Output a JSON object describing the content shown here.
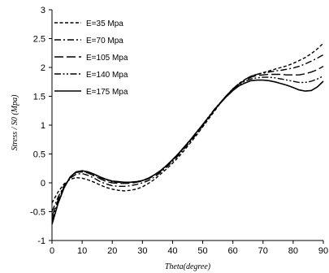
{
  "chart_data": {
    "type": "line",
    "xlabel": "Theta(degree)",
    "ylabel": "Stress / S0 (Mpa)",
    "xlim": [
      0,
      90
    ],
    "ylim": [
      -1,
      3
    ],
    "xticks": [
      0,
      10,
      20,
      30,
      40,
      50,
      60,
      70,
      80,
      90
    ],
    "yticks": [
      -1,
      -0.5,
      0,
      0.5,
      1,
      1.5,
      2,
      2.5,
      3
    ],
    "grid": false,
    "legend_position": "top-left",
    "x": [
      0,
      2,
      4,
      6,
      8,
      10,
      12,
      14,
      16,
      18,
      20,
      22,
      24,
      26,
      28,
      30,
      32,
      34,
      36,
      38,
      40,
      42,
      44,
      46,
      48,
      50,
      52,
      54,
      56,
      58,
      60,
      62,
      64,
      66,
      68,
      70,
      72,
      74,
      76,
      78,
      80,
      82,
      84,
      86,
      88,
      90
    ],
    "series": [
      {
        "name": "E=35 Mpa",
        "dash": "dash",
        "values": [
          -0.35,
          -0.16,
          -0.02,
          0.06,
          0.09,
          0.08,
          0.05,
          0.01,
          -0.04,
          -0.08,
          -0.11,
          -0.13,
          -0.14,
          -0.13,
          -0.11,
          -0.07,
          -0.01,
          0.06,
          0.15,
          0.24,
          0.34,
          0.45,
          0.57,
          0.7,
          0.83,
          0.97,
          1.11,
          1.25,
          1.39,
          1.51,
          1.63,
          1.72,
          1.79,
          1.85,
          1.88,
          1.91,
          1.94,
          1.97,
          2.0,
          2.03,
          2.07,
          2.12,
          2.17,
          2.24,
          2.32,
          2.42
        ]
      },
      {
        "name": "E=70 Mpa",
        "dash": "dashdot",
        "values": [
          -0.5,
          -0.25,
          -0.05,
          0.08,
          0.15,
          0.16,
          0.13,
          0.08,
          0.02,
          -0.02,
          -0.05,
          -0.06,
          -0.06,
          -0.05,
          -0.03,
          0.0,
          0.04,
          0.1,
          0.18,
          0.27,
          0.37,
          0.48,
          0.6,
          0.72,
          0.85,
          0.99,
          1.13,
          1.27,
          1.4,
          1.52,
          1.63,
          1.72,
          1.79,
          1.85,
          1.88,
          1.9,
          1.92,
          1.94,
          1.95,
          1.97,
          1.99,
          2.02,
          2.06,
          2.11,
          2.16,
          2.22
        ]
      },
      {
        "name": "E=105 Mpa",
        "dash": "longdash",
        "values": [
          -0.58,
          -0.3,
          -0.07,
          0.09,
          0.18,
          0.19,
          0.17,
          0.12,
          0.07,
          0.02,
          0.0,
          -0.01,
          -0.01,
          -0.01,
          0.01,
          0.03,
          0.07,
          0.13,
          0.2,
          0.29,
          0.39,
          0.5,
          0.62,
          0.74,
          0.87,
          1.0,
          1.14,
          1.28,
          1.4,
          1.52,
          1.63,
          1.71,
          1.78,
          1.83,
          1.86,
          1.87,
          1.88,
          1.88,
          1.88,
          1.87,
          1.87,
          1.87,
          1.89,
          1.92,
          1.96,
          2.02
        ]
      },
      {
        "name": "E=140 Mpa",
        "dash": "dashdotdot",
        "values": [
          -0.65,
          -0.33,
          -0.08,
          0.1,
          0.19,
          0.2,
          0.18,
          0.14,
          0.09,
          0.05,
          0.02,
          0.01,
          0.0,
          0.01,
          0.02,
          0.04,
          0.08,
          0.14,
          0.21,
          0.3,
          0.4,
          0.51,
          0.63,
          0.75,
          0.88,
          1.01,
          1.15,
          1.28,
          1.4,
          1.51,
          1.62,
          1.7,
          1.76,
          1.8,
          1.82,
          1.83,
          1.83,
          1.82,
          1.8,
          1.78,
          1.76,
          1.74,
          1.74,
          1.76,
          1.8,
          1.85
        ]
      },
      {
        "name": "E=175 Mpa",
        "dash": "solid",
        "values": [
          -0.72,
          -0.36,
          -0.09,
          0.1,
          0.19,
          0.21,
          0.19,
          0.15,
          0.1,
          0.06,
          0.03,
          0.02,
          0.01,
          0.01,
          0.02,
          0.04,
          0.08,
          0.14,
          0.21,
          0.3,
          0.4,
          0.51,
          0.63,
          0.75,
          0.88,
          1.01,
          1.14,
          1.27,
          1.39,
          1.5,
          1.6,
          1.68,
          1.73,
          1.77,
          1.78,
          1.78,
          1.77,
          1.75,
          1.72,
          1.69,
          1.65,
          1.61,
          1.59,
          1.6,
          1.66,
          1.76
        ]
      }
    ]
  }
}
